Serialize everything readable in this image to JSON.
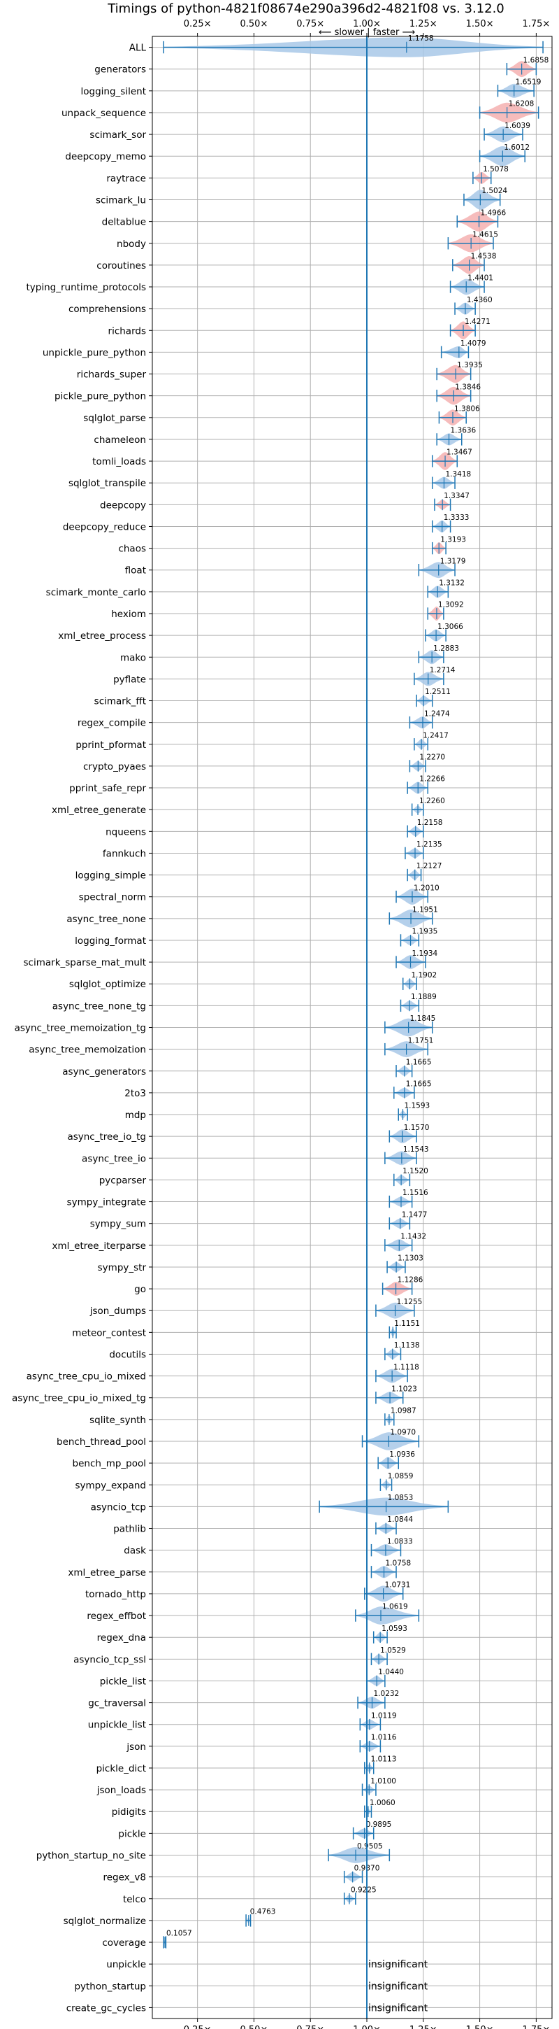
{
  "chart_data": {
    "type": "violin",
    "title": "Timings of python-4821f08674e290a396d2-4821f08 vs. 3.12.0",
    "direction_label": "⟵ slower | faster ⟶",
    "insignificant_label": "insignificant",
    "xlim": [
      0.05,
      1.82
    ],
    "xticks": [
      0.25,
      0.5,
      0.75,
      1.0,
      1.25,
      1.5,
      1.75
    ],
    "xtick_labels": [
      "0.25×",
      "0.50×",
      "0.75×",
      "1.00×",
      "1.25×",
      "1.50×",
      "1.75×"
    ],
    "reference_line": 1.0,
    "colors": {
      "faster": "#a8c8e8",
      "slower": "#f4b0b0",
      "line": "#1f77b4"
    },
    "benchmarks": [
      {
        "name": "ALL",
        "value": 1.1758,
        "lo": 0.1,
        "hi": 1.78,
        "w": 1.0,
        "label": "1.1758",
        "slower": false
      },
      {
        "name": "generators",
        "value": 1.6858,
        "lo": 1.62,
        "hi": 1.75,
        "w": 0.8,
        "label": "1.6858",
        "slower": true
      },
      {
        "name": "logging_silent",
        "value": 1.6519,
        "lo": 1.58,
        "hi": 1.74,
        "w": 0.7,
        "label": "1.6519",
        "slower": false
      },
      {
        "name": "unpack_sequence",
        "value": 1.6208,
        "lo": 1.5,
        "hi": 1.76,
        "w": 1.0,
        "label": "1.6208",
        "slower": true
      },
      {
        "name": "scimark_sor",
        "value": 1.6039,
        "lo": 1.52,
        "hi": 1.69,
        "w": 0.8,
        "label": "1.6039",
        "slower": false
      },
      {
        "name": "deepcopy_memo",
        "value": 1.6012,
        "lo": 1.5,
        "hi": 1.7,
        "w": 1.0,
        "label": "1.6012",
        "slower": false
      },
      {
        "name": "raytrace",
        "value": 1.5078,
        "lo": 1.47,
        "hi": 1.55,
        "w": 0.6,
        "label": "1.5078",
        "slower": true
      },
      {
        "name": "scimark_lu",
        "value": 1.5024,
        "lo": 1.43,
        "hi": 1.59,
        "w": 1.0,
        "label": "1.5024",
        "slower": false
      },
      {
        "name": "deltablue",
        "value": 1.4966,
        "lo": 1.4,
        "hi": 1.58,
        "w": 1.0,
        "label": "1.4966",
        "slower": true
      },
      {
        "name": "nbody",
        "value": 1.4615,
        "lo": 1.36,
        "hi": 1.56,
        "w": 0.9,
        "label": "1.4615",
        "slower": true
      },
      {
        "name": "coroutines",
        "value": 1.4538,
        "lo": 1.38,
        "hi": 1.52,
        "w": 0.9,
        "label": "1.4538",
        "slower": true
      },
      {
        "name": "typing_runtime_protocols",
        "value": 1.4401,
        "lo": 1.37,
        "hi": 1.52,
        "w": 0.8,
        "label": "1.4401",
        "slower": false
      },
      {
        "name": "comprehensions",
        "value": 1.436,
        "lo": 1.39,
        "hi": 1.48,
        "w": 0.6,
        "label": "1.4360",
        "slower": false
      },
      {
        "name": "richards",
        "value": 1.4271,
        "lo": 1.37,
        "hi": 1.48,
        "w": 0.9,
        "label": "1.4271",
        "slower": true
      },
      {
        "name": "unpickle_pure_python",
        "value": 1.4079,
        "lo": 1.33,
        "hi": 1.45,
        "w": 0.6,
        "label": "1.4079",
        "slower": false
      },
      {
        "name": "richards_super",
        "value": 1.3935,
        "lo": 1.31,
        "hi": 1.46,
        "w": 0.9,
        "label": "1.3935",
        "slower": true
      },
      {
        "name": "pickle_pure_python",
        "value": 1.3846,
        "lo": 1.31,
        "hi": 1.46,
        "w": 0.9,
        "label": "1.3846",
        "slower": true
      },
      {
        "name": "sqlglot_parse",
        "value": 1.3806,
        "lo": 1.32,
        "hi": 1.44,
        "w": 0.8,
        "label": "1.3806",
        "slower": true
      },
      {
        "name": "chameleon",
        "value": 1.3636,
        "lo": 1.31,
        "hi": 1.42,
        "w": 0.6,
        "label": "1.3636",
        "slower": false
      },
      {
        "name": "tomli_loads",
        "value": 1.3467,
        "lo": 1.29,
        "hi": 1.4,
        "w": 0.9,
        "label": "1.3467",
        "slower": true
      },
      {
        "name": "sqlglot_transpile",
        "value": 1.3418,
        "lo": 1.29,
        "hi": 1.39,
        "w": 0.6,
        "label": "1.3418",
        "slower": false
      },
      {
        "name": "deepcopy",
        "value": 1.3347,
        "lo": 1.3,
        "hi": 1.37,
        "w": 0.5,
        "label": "1.3347",
        "slower": true
      },
      {
        "name": "deepcopy_reduce",
        "value": 1.3333,
        "lo": 1.29,
        "hi": 1.37,
        "w": 0.6,
        "label": "1.3333",
        "slower": false
      },
      {
        "name": "chaos",
        "value": 1.3193,
        "lo": 1.29,
        "hi": 1.35,
        "w": 0.6,
        "label": "1.3193",
        "slower": true
      },
      {
        "name": "float",
        "value": 1.3179,
        "lo": 1.23,
        "hi": 1.39,
        "w": 0.8,
        "label": "1.3179",
        "slower": false
      },
      {
        "name": "scimark_monte_carlo",
        "value": 1.3132,
        "lo": 1.27,
        "hi": 1.36,
        "w": 0.6,
        "label": "1.3132",
        "slower": false
      },
      {
        "name": "hexiom",
        "value": 1.3092,
        "lo": 1.27,
        "hi": 1.34,
        "w": 0.7,
        "label": "1.3092",
        "slower": true
      },
      {
        "name": "xml_etree_process",
        "value": 1.3066,
        "lo": 1.26,
        "hi": 1.35,
        "w": 0.6,
        "label": "1.3066",
        "slower": false
      },
      {
        "name": "mako",
        "value": 1.2883,
        "lo": 1.23,
        "hi": 1.34,
        "w": 0.7,
        "label": "1.2883",
        "slower": false
      },
      {
        "name": "pyflate",
        "value": 1.2714,
        "lo": 1.21,
        "hi": 1.34,
        "w": 0.7,
        "label": "1.2714",
        "slower": false
      },
      {
        "name": "scimark_fft",
        "value": 1.2511,
        "lo": 1.22,
        "hi": 1.29,
        "w": 0.5,
        "label": "1.2511",
        "slower": false
      },
      {
        "name": "regex_compile",
        "value": 1.2474,
        "lo": 1.19,
        "hi": 1.29,
        "w": 0.6,
        "label": "1.2474",
        "slower": false
      },
      {
        "name": "pprint_pformat",
        "value": 1.2417,
        "lo": 1.21,
        "hi": 1.27,
        "w": 0.5,
        "label": "1.2417",
        "slower": false
      },
      {
        "name": "crypto_pyaes",
        "value": 1.227,
        "lo": 1.19,
        "hi": 1.26,
        "w": 0.5,
        "label": "1.2270",
        "slower": false
      },
      {
        "name": "pprint_safe_repr",
        "value": 1.2266,
        "lo": 1.18,
        "hi": 1.27,
        "w": 0.6,
        "label": "1.2266",
        "slower": false
      },
      {
        "name": "xml_etree_generate",
        "value": 1.226,
        "lo": 1.2,
        "hi": 1.25,
        "w": 0.4,
        "label": "1.2260",
        "slower": false
      },
      {
        "name": "nqueens",
        "value": 1.2158,
        "lo": 1.18,
        "hi": 1.25,
        "w": 0.5,
        "label": "1.2158",
        "slower": false
      },
      {
        "name": "fannkuch",
        "value": 1.2135,
        "lo": 1.17,
        "hi": 1.25,
        "w": 0.5,
        "label": "1.2135",
        "slower": false
      },
      {
        "name": "logging_simple",
        "value": 1.2127,
        "lo": 1.18,
        "hi": 1.24,
        "w": 0.5,
        "label": "1.2127",
        "slower": false
      },
      {
        "name": "spectral_norm",
        "value": 1.201,
        "lo": 1.13,
        "hi": 1.27,
        "w": 0.8,
        "label": "1.2010",
        "slower": false
      },
      {
        "name": "async_tree_none",
        "value": 1.1951,
        "lo": 1.1,
        "hi": 1.29,
        "w": 0.9,
        "label": "1.1951",
        "slower": false
      },
      {
        "name": "logging_format",
        "value": 1.1935,
        "lo": 1.15,
        "hi": 1.23,
        "w": 0.5,
        "label": "1.1935",
        "slower": false
      },
      {
        "name": "scimark_sparse_mat_mult",
        "value": 1.1934,
        "lo": 1.13,
        "hi": 1.26,
        "w": 0.7,
        "label": "1.1934",
        "slower": false
      },
      {
        "name": "sqlglot_optimize",
        "value": 1.1902,
        "lo": 1.16,
        "hi": 1.22,
        "w": 0.5,
        "label": "1.1902",
        "slower": false
      },
      {
        "name": "async_tree_none_tg",
        "value": 1.1889,
        "lo": 1.15,
        "hi": 1.23,
        "w": 0.5,
        "label": "1.1889",
        "slower": false
      },
      {
        "name": "async_tree_memoization_tg",
        "value": 1.1845,
        "lo": 1.08,
        "hi": 1.29,
        "w": 0.9,
        "label": "1.1845",
        "slower": false
      },
      {
        "name": "async_tree_memoization",
        "value": 1.1751,
        "lo": 1.08,
        "hi": 1.27,
        "w": 0.8,
        "label": "1.1751",
        "slower": false
      },
      {
        "name": "async_generators",
        "value": 1.1665,
        "lo": 1.13,
        "hi": 1.2,
        "w": 0.5,
        "label": "1.1665",
        "slower": false
      },
      {
        "name": "2to3",
        "value": 1.1665,
        "lo": 1.12,
        "hi": 1.21,
        "w": 0.5,
        "label": "1.1665",
        "slower": false
      },
      {
        "name": "mdp",
        "value": 1.1593,
        "lo": 1.14,
        "hi": 1.18,
        "w": 0.4,
        "label": "1.1593",
        "slower": false
      },
      {
        "name": "async_tree_io_tg",
        "value": 1.157,
        "lo": 1.1,
        "hi": 1.22,
        "w": 0.7,
        "label": "1.1570",
        "slower": false
      },
      {
        "name": "async_tree_io",
        "value": 1.1543,
        "lo": 1.08,
        "hi": 1.22,
        "w": 0.7,
        "label": "1.1543",
        "slower": false
      },
      {
        "name": "pycparser",
        "value": 1.152,
        "lo": 1.12,
        "hi": 1.19,
        "w": 0.5,
        "label": "1.1520",
        "slower": false
      },
      {
        "name": "sympy_integrate",
        "value": 1.1516,
        "lo": 1.1,
        "hi": 1.2,
        "w": 0.5,
        "label": "1.1516",
        "slower": false
      },
      {
        "name": "sympy_sum",
        "value": 1.1477,
        "lo": 1.1,
        "hi": 1.19,
        "w": 0.5,
        "label": "1.1477",
        "slower": false
      },
      {
        "name": "xml_etree_iterparse",
        "value": 1.1432,
        "lo": 1.08,
        "hi": 1.2,
        "w": 0.6,
        "label": "1.1432",
        "slower": false
      },
      {
        "name": "sympy_str",
        "value": 1.1303,
        "lo": 1.09,
        "hi": 1.17,
        "w": 0.5,
        "label": "1.1303",
        "slower": false
      },
      {
        "name": "go",
        "value": 1.1286,
        "lo": 1.07,
        "hi": 1.2,
        "w": 0.7,
        "label": "1.1286",
        "slower": true
      },
      {
        "name": "json_dumps",
        "value": 1.1255,
        "lo": 1.04,
        "hi": 1.21,
        "w": 0.8,
        "label": "1.1255",
        "slower": false
      },
      {
        "name": "meteor_contest",
        "value": 1.1151,
        "lo": 1.1,
        "hi": 1.13,
        "w": 0.4,
        "label": "1.1151",
        "slower": false
      },
      {
        "name": "docutils",
        "value": 1.1138,
        "lo": 1.08,
        "hi": 1.15,
        "w": 0.5,
        "label": "1.1138",
        "slower": false
      },
      {
        "name": "async_tree_cpu_io_mixed",
        "value": 1.1118,
        "lo": 1.04,
        "hi": 1.18,
        "w": 0.7,
        "label": "1.1118",
        "slower": false
      },
      {
        "name": "async_tree_cpu_io_mixed_tg",
        "value": 1.1023,
        "lo": 1.04,
        "hi": 1.16,
        "w": 0.6,
        "label": "1.1023",
        "slower": false
      },
      {
        "name": "sqlite_synth",
        "value": 1.0987,
        "lo": 1.08,
        "hi": 1.12,
        "w": 0.4,
        "label": "1.0987",
        "slower": false
      },
      {
        "name": "bench_thread_pool",
        "value": 1.097,
        "lo": 0.98,
        "hi": 1.23,
        "w": 0.9,
        "label": "1.0970",
        "slower": false
      },
      {
        "name": "bench_mp_pool",
        "value": 1.0936,
        "lo": 1.05,
        "hi": 1.14,
        "w": 0.6,
        "label": "1.0936",
        "slower": false
      },
      {
        "name": "sympy_expand",
        "value": 1.0859,
        "lo": 1.06,
        "hi": 1.11,
        "w": 0.4,
        "label": "1.0859",
        "slower": false
      },
      {
        "name": "asyncio_tcp",
        "value": 1.0853,
        "lo": 0.79,
        "hi": 1.36,
        "w": 0.9,
        "label": "1.0853",
        "slower": false
      },
      {
        "name": "pathlib",
        "value": 1.0844,
        "lo": 1.04,
        "hi": 1.13,
        "w": 0.5,
        "label": "1.0844",
        "slower": false
      },
      {
        "name": "dask",
        "value": 1.0833,
        "lo": 1.02,
        "hi": 1.15,
        "w": 0.6,
        "label": "1.0833",
        "slower": false
      },
      {
        "name": "xml_etree_parse",
        "value": 1.0758,
        "lo": 1.02,
        "hi": 1.13,
        "w": 0.6,
        "label": "1.0758",
        "slower": false
      },
      {
        "name": "tornado_http",
        "value": 1.0731,
        "lo": 0.99,
        "hi": 1.16,
        "w": 0.8,
        "label": "1.0731",
        "slower": false
      },
      {
        "name": "regex_effbot",
        "value": 1.0619,
        "lo": 0.95,
        "hi": 1.23,
        "w": 0.9,
        "label": "1.0619",
        "slower": false
      },
      {
        "name": "regex_dna",
        "value": 1.0593,
        "lo": 1.03,
        "hi": 1.09,
        "w": 0.5,
        "label": "1.0593",
        "slower": false
      },
      {
        "name": "asyncio_tcp_ssl",
        "value": 1.0529,
        "lo": 1.02,
        "hi": 1.09,
        "w": 0.5,
        "label": "1.0529",
        "slower": false
      },
      {
        "name": "pickle_list",
        "value": 1.044,
        "lo": 1.0,
        "hi": 1.08,
        "w": 0.5,
        "label": "1.0440",
        "slower": false
      },
      {
        "name": "gc_traversal",
        "value": 1.0232,
        "lo": 0.96,
        "hi": 1.08,
        "w": 0.6,
        "label": "1.0232",
        "slower": false
      },
      {
        "name": "unpickle_list",
        "value": 1.0119,
        "lo": 0.97,
        "hi": 1.06,
        "w": 0.5,
        "label": "1.0119",
        "slower": false
      },
      {
        "name": "json",
        "value": 1.0116,
        "lo": 0.97,
        "hi": 1.06,
        "w": 0.5,
        "label": "1.0116",
        "slower": false
      },
      {
        "name": "pickle_dict",
        "value": 1.0113,
        "lo": 0.99,
        "hi": 1.03,
        "w": 0.4,
        "label": "1.0113",
        "slower": false
      },
      {
        "name": "json_loads",
        "value": 1.01,
        "lo": 0.98,
        "hi": 1.04,
        "w": 0.4,
        "label": "1.0100",
        "slower": false
      },
      {
        "name": "pidigits",
        "value": 1.006,
        "lo": 0.99,
        "hi": 1.02,
        "w": 0.3,
        "label": "1.0060",
        "slower": false
      },
      {
        "name": "pickle",
        "value": 0.9895,
        "lo": 0.94,
        "hi": 1.03,
        "w": 0.5,
        "label": "0.9895",
        "slower": false
      },
      {
        "name": "python_startup_no_site",
        "value": 0.9505,
        "lo": 0.83,
        "hi": 1.1,
        "w": 0.8,
        "label": "0.9505",
        "slower": false
      },
      {
        "name": "regex_v8",
        "value": 0.937,
        "lo": 0.9,
        "hi": 0.98,
        "w": 0.5,
        "label": "0.9370",
        "slower": false
      },
      {
        "name": "telco",
        "value": 0.9225,
        "lo": 0.9,
        "hi": 0.95,
        "w": 0.4,
        "label": "0.9225",
        "slower": false
      },
      {
        "name": "sqlglot_normalize",
        "value": 0.4763,
        "lo": 0.465,
        "hi": 0.485,
        "w": 0.3,
        "label": "0.4763",
        "slower": false
      },
      {
        "name": "coverage",
        "value": 0.1057,
        "lo": 0.1,
        "hi": 0.11,
        "w": 0.3,
        "label": "0.1057",
        "slower": false
      },
      {
        "name": "unpickle",
        "value": null,
        "insignificant": true
      },
      {
        "name": "python_startup",
        "value": null,
        "insignificant": true
      },
      {
        "name": "create_gc_cycles",
        "value": null,
        "insignificant": true
      }
    ]
  }
}
